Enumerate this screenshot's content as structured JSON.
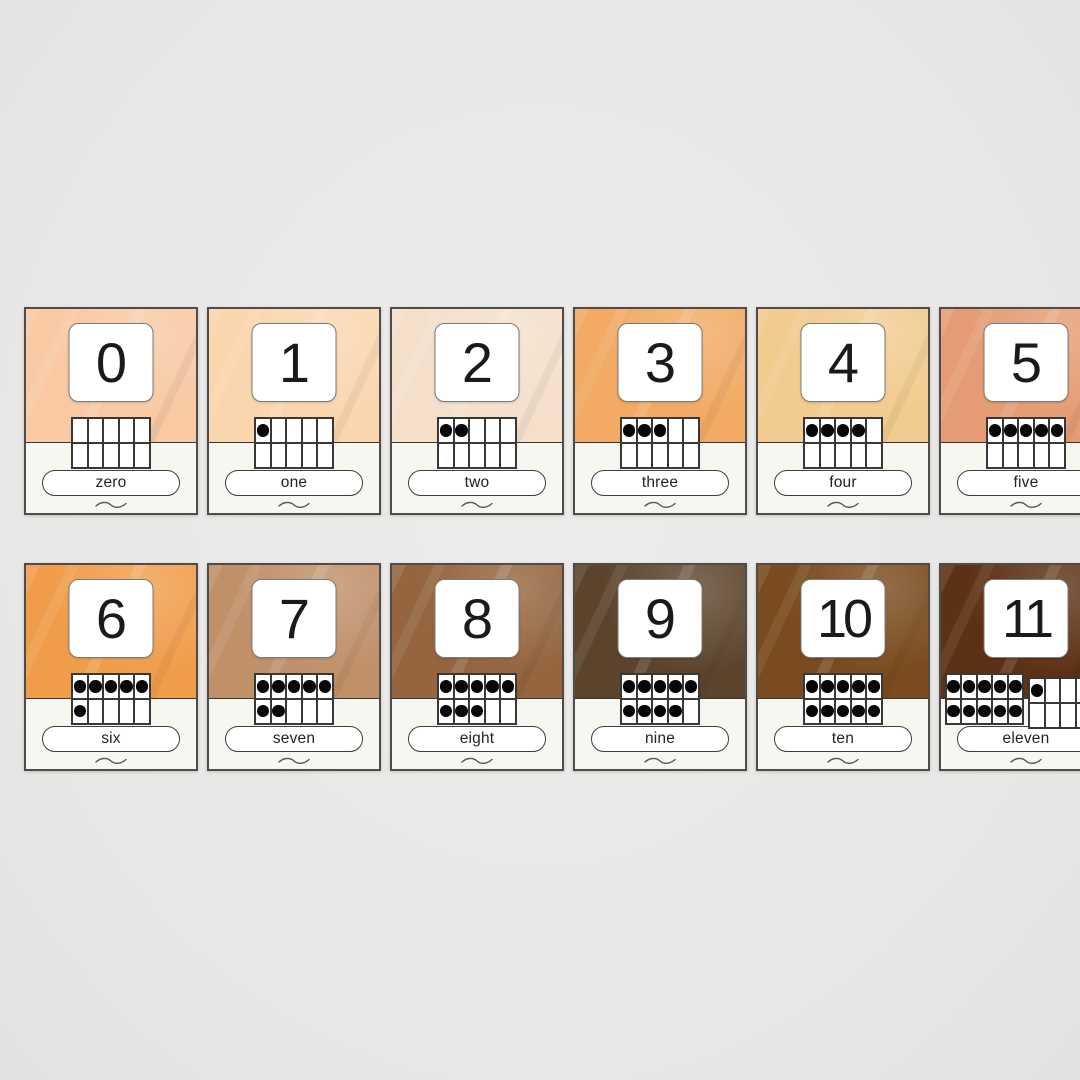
{
  "board": {
    "background_color": "#e9e8e6",
    "card_face_color": "#f8f6f1",
    "dot_color": "#070707"
  },
  "cards": [
    {
      "number": "0",
      "word": "zero",
      "dots": 0,
      "color": "#f8c9a3"
    },
    {
      "number": "1",
      "word": "one",
      "dots": 1,
      "color": "#fad6ae"
    },
    {
      "number": "2",
      "word": "two",
      "dots": 2,
      "color": "#f4dfcb"
    },
    {
      "number": "3",
      "word": "three",
      "dots": 3,
      "color": "#f2aa64"
    },
    {
      "number": "4",
      "word": "four",
      "dots": 4,
      "color": "#f2cb8e"
    },
    {
      "number": "5",
      "word": "five",
      "dots": 5,
      "color": "#e59c74"
    },
    {
      "number": "6",
      "word": "six",
      "dots": 6,
      "color": "#f09d4b"
    },
    {
      "number": "7",
      "word": "seven",
      "dots": 7,
      "color": "#c09069"
    },
    {
      "number": "8",
      "word": "eight",
      "dots": 8,
      "color": "#94653e"
    },
    {
      "number": "9",
      "word": "nine",
      "dots": 9,
      "color": "#5c442c"
    },
    {
      "number": "10",
      "word": "ten",
      "dots": 10,
      "color": "#7a4b1e"
    },
    {
      "number": "11",
      "word": "eleven",
      "dots": 11,
      "color": "#5d3115"
    }
  ]
}
